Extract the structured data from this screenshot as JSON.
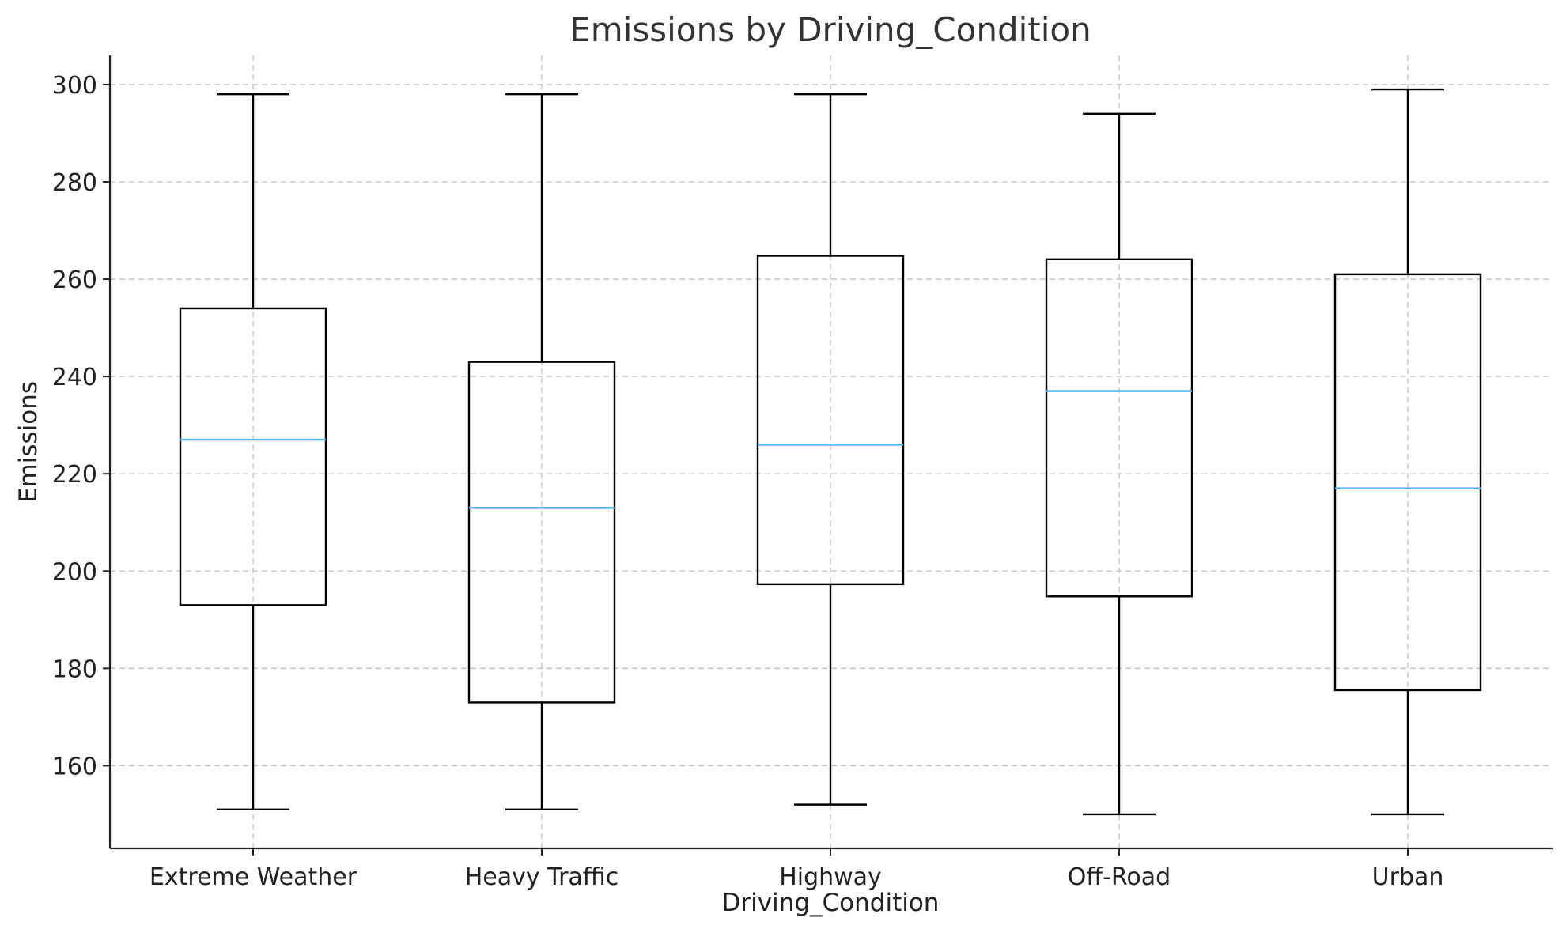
{
  "chart_data": {
    "type": "box",
    "title": "Emissions by Driving_Condition",
    "xlabel": "Driving_Condition",
    "ylabel": "Emissions",
    "ylim": [
      143,
      306
    ],
    "yticks": [
      160,
      180,
      200,
      220,
      240,
      260,
      280,
      300
    ],
    "grid": true,
    "median_color": "#56b4e9",
    "box_color": "#000000",
    "categories": [
      "Extreme Weather",
      "Heavy Traffic",
      "Highway",
      "Off-Road",
      "Urban"
    ],
    "boxes": [
      {
        "category": "Extreme Weather",
        "whisker_low": 151,
        "q1": 193,
        "median": 227,
        "q3": 254,
        "whisker_high": 298
      },
      {
        "category": "Heavy Traffic",
        "whisker_low": 151,
        "q1": 173,
        "median": 213,
        "q3": 243,
        "whisker_high": 298
      },
      {
        "category": "Highway",
        "whisker_low": 152,
        "q1": 197.3,
        "median": 226,
        "q3": 264.8,
        "whisker_high": 298
      },
      {
        "category": "Off-Road",
        "whisker_low": 150,
        "q1": 194.8,
        "median": 237,
        "q3": 264.1,
        "whisker_high": 294
      },
      {
        "category": "Urban",
        "whisker_low": 150,
        "q1": 175.5,
        "median": 217,
        "q3": 261,
        "whisker_high": 299
      }
    ]
  }
}
